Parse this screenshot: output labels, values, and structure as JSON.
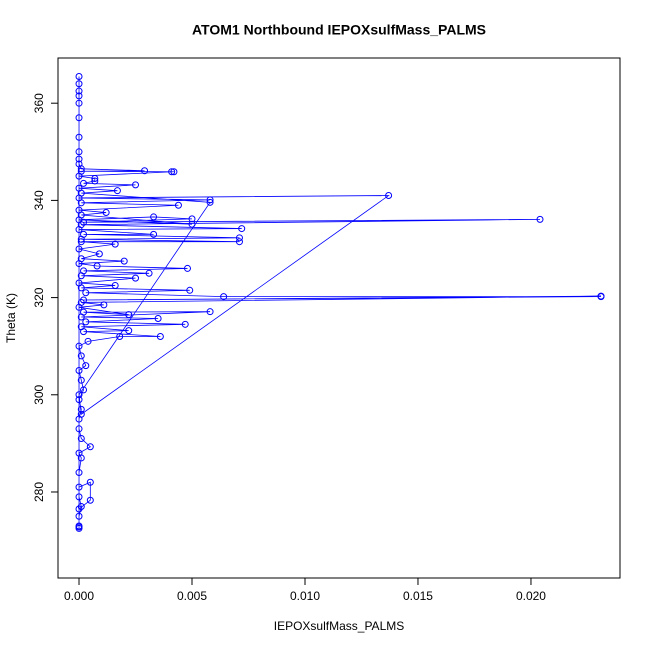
{
  "chart_data": {
    "type": "scatter-line",
    "title": "ATOM1 Northbound IEPOXsulfMass_PALMS",
    "x_label": "IEPOXsulfMass_PALMS",
    "y_label": "Theta (K)",
    "color": "#0000ff",
    "xlim": [
      -0.00093,
      0.02394
    ],
    "ylim": [
      262.3,
      369.3
    ],
    "xticks": [
      {
        "value": 0,
        "label": "0.000"
      },
      {
        "value": 0.005,
        "label": "0.005"
      },
      {
        "value": 0.01,
        "label": "0.010"
      },
      {
        "value": 0.015,
        "label": "0.015"
      },
      {
        "value": 0.02,
        "label": "0.020"
      }
    ],
    "yticks": [
      280,
      300,
      320,
      340,
      360
    ],
    "x": [
      0,
      0,
      0,
      0.0001,
      0,
      0,
      0.0005,
      0.0005,
      0,
      0,
      0.0001,
      0,
      0.0005,
      0.0001,
      0,
      0,
      0.0001,
      0,
      0.0002,
      0.0001,
      0,
      0.0003,
      0.0001,
      0,
      0.0004,
      0.0018,
      0.0036,
      0.0002,
      0.0022,
      0.0001,
      0.0047,
      0.0003,
      0.0035,
      0.0001,
      0.0058,
      0.0002,
      0.0022,
      0,
      0.0011,
      0.0001,
      0.0231,
      0.0002,
      0.0231,
      0.0064,
      0.0003,
      0.0049,
      0.0001,
      0.0016,
      0,
      0.0025,
      0.0001,
      0.0031,
      0.0002,
      0.0048,
      0.0008,
      0,
      0.002,
      0.0001,
      0.0009,
      0,
      0.0016,
      0.0001,
      0.0071,
      0.0001,
      0.0071,
      0.0002,
      0.0033,
      0,
      0.0072,
      0.0001,
      0.0204,
      0.0002,
      0.005,
      0.0033,
      0,
      0.005,
      0.0001,
      0.0012,
      0,
      0.0044,
      0.0001,
      0.0058,
      0,
      0.0137,
      0.0001,
      0,
      0.0058,
      0.0001,
      0.0017,
      0,
      0.0025,
      0.0002,
      0.0007,
      0.0007,
      0,
      0.0042,
      0.0041,
      0.0001,
      0.0029,
      0.0001,
      0,
      0,
      0,
      0,
      0,
      0,
      0,
      0,
      0,
      0,
      0
    ],
    "values": [
      272.5,
      273,
      275,
      277,
      279,
      276.5,
      278.3,
      282,
      281,
      284,
      287,
      288,
      289.3,
      291,
      293,
      295,
      297,
      299,
      301,
      303,
      305,
      306,
      308,
      310,
      311,
      312,
      312,
      313,
      313.2,
      314,
      314.5,
      315,
      315.7,
      316,
      317.1,
      317,
      316.5,
      318,
      318.5,
      319,
      320.3,
      319.5,
      320.2,
      320.2,
      321,
      321.5,
      322,
      322.5,
      323,
      324,
      324.5,
      325,
      325.5,
      326,
      326.5,
      327,
      327.5,
      328,
      329,
      330,
      331,
      331.5,
      331.5,
      332,
      332.3,
      333,
      333,
      334,
      334.2,
      335,
      336.1,
      335.5,
      336.2,
      336.6,
      336,
      335.1,
      337,
      337.5,
      338,
      339,
      339.5,
      340.1,
      340.5,
      341,
      296,
      300,
      339.6,
      341.5,
      342,
      342.5,
      343.2,
      343.5,
      344,
      344.5,
      345,
      345.9,
      345.9,
      346,
      346.1,
      346.5,
      347.5,
      348.5,
      350,
      353,
      357,
      360,
      361.5,
      362.5,
      364,
      365.5,
      272.8
    ]
  }
}
